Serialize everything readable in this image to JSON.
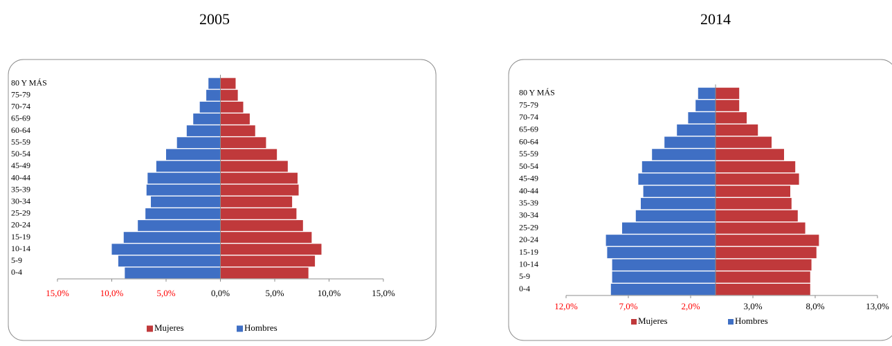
{
  "chart_data": [
    {
      "type": "pyramid",
      "title": "2005",
      "categories": [
        "0-4",
        "5-9",
        "10-14",
        "15-19",
        "20-24",
        "25-29",
        "30-34",
        "35-39",
        "40-44",
        "45-49",
        "50-54",
        "55-59",
        "60-64",
        "65-69",
        "70-74",
        "75-79",
        "80 Y MÁS"
      ],
      "series": [
        {
          "name": "Mujeres",
          "color": "#c0393b",
          "values": [
            8.1,
            8.7,
            9.3,
            8.4,
            7.6,
            7.0,
            6.6,
            7.2,
            7.1,
            6.2,
            5.2,
            4.2,
            3.2,
            2.7,
            2.1,
            1.6,
            1.4
          ]
        },
        {
          "name": "Hombres",
          "color": "#3f6fc4",
          "values": [
            -8.8,
            -9.4,
            -10.0,
            -8.9,
            -7.6,
            -6.9,
            -6.4,
            -6.8,
            -6.7,
            -5.9,
            -5.0,
            -4.0,
            -3.1,
            -2.5,
            -1.9,
            -1.3,
            -1.1
          ]
        }
      ],
      "xlim": [
        -15,
        15
      ],
      "xticks": [
        {
          "value": -15,
          "label": "15,0%"
        },
        {
          "value": -10,
          "label": "10,0%"
        },
        {
          "value": -5,
          "label": "5,0%"
        },
        {
          "value": 0,
          "label": "0,0%"
        },
        {
          "value": 5,
          "label": "5,0%"
        },
        {
          "value": 10,
          "label": "10,0%"
        },
        {
          "value": 15,
          "label": "15,0%"
        }
      ],
      "negative_tick_color": "#ff0000",
      "legend": "bottom"
    },
    {
      "type": "pyramid",
      "title": "2014",
      "categories": [
        "0-4",
        "5-9",
        "10-14",
        "15-19",
        "20-24",
        "25-29",
        "30-34",
        "35-39",
        "40-44",
        "45-49",
        "50-54",
        "55-59",
        "60-64",
        "65-69",
        "70-74",
        "75-79",
        "80 Y MÁS"
      ],
      "series": [
        {
          "name": "Mujeres",
          "color": "#c0393b",
          "values": [
            7.6,
            7.6,
            7.7,
            8.1,
            8.3,
            7.2,
            6.6,
            6.1,
            6.0,
            6.7,
            6.4,
            5.5,
            4.5,
            3.4,
            2.5,
            1.9,
            1.9
          ]
        },
        {
          "name": "Hombres",
          "color": "#3f6fc4",
          "values": [
            -8.4,
            -8.3,
            -8.3,
            -8.7,
            -8.8,
            -7.5,
            -6.4,
            -6.0,
            -5.8,
            -6.2,
            -5.9,
            -5.1,
            -4.1,
            -3.1,
            -2.2,
            -1.6,
            -1.4
          ]
        }
      ],
      "xlim": [
        -12,
        13
      ],
      "xticks": [
        {
          "value": -12,
          "label": "12,0%"
        },
        {
          "value": -7,
          "label": "7,0%"
        },
        {
          "value": -2,
          "label": "2,0%"
        },
        {
          "value": 3,
          "label": "3,0%"
        },
        {
          "value": 8,
          "label": "8,0%"
        },
        {
          "value": 13,
          "label": "13,0%"
        }
      ],
      "negative_tick_color": "#ff0000",
      "legend": "bottom"
    }
  ]
}
